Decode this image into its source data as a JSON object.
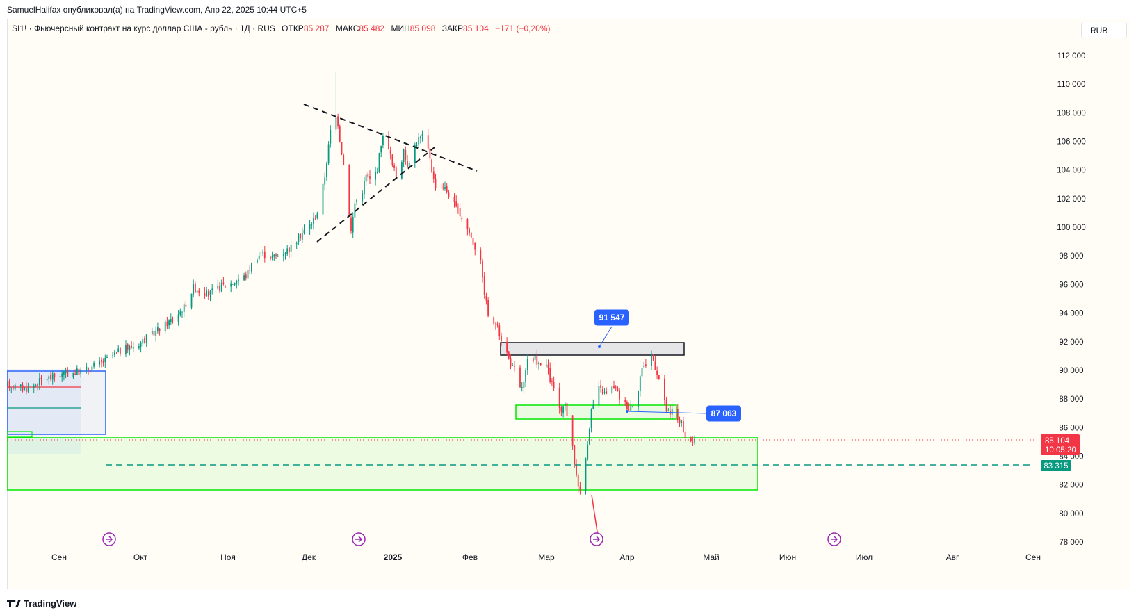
{
  "topbar": {
    "text": "SamuelHalifax опубликовал(а) на TradingView.com, Апр 22, 2025 10:44 UTC+5"
  },
  "legend": {
    "symbol": "SI1! · Фьючерсный контракт на курс доллар США - рубль · 1Д · RUS",
    "open_label": "ОТКР",
    "open": "85 287",
    "high_label": "МАКС",
    "high": "85 482",
    "low_label": "МИН",
    "low": "85 098",
    "close_label": "ЗАКР",
    "close": "85 104",
    "change": "−171 (−0,20%)"
  },
  "currency_button": "RUB",
  "footer": {
    "brand": "TradingView"
  },
  "colors": {
    "up": "#089981",
    "down": "#f23645",
    "zone_green": "#00e600",
    "accent": "#2962ff"
  },
  "chart_data": {
    "type": "candlestick",
    "ylim": [
      77500,
      113000
    ],
    "y_ticks": [
      112000,
      110000,
      108000,
      106000,
      104000,
      102000,
      100000,
      98000,
      96000,
      94000,
      92000,
      90000,
      88000,
      86000,
      84000,
      82000,
      80000,
      78000
    ],
    "y_tick_labels": [
      "112 000",
      "110 000",
      "108 000",
      "106 000",
      "104 000",
      "102 000",
      "100 000",
      "98 000",
      "96 000",
      "94 000",
      "92 000",
      "90 000",
      "88 000",
      "86 000",
      "84 000",
      "82 000",
      "80 000",
      "78 000"
    ],
    "x_labels": [
      "Сен",
      "Окт",
      "Ноя",
      "Дек",
      "2025",
      "Фев",
      "Мар",
      "Апр",
      "Май",
      "Июн",
      "Июл",
      "Авг",
      "Сен"
    ],
    "x_label_bold": "2025",
    "last_price": "85 104",
    "countdown": "10:05:20",
    "level_price": "83 315",
    "callouts": [
      "91 547",
      "87 063"
    ],
    "price_path": [
      [
        0,
        89000
      ],
      [
        12,
        88700
      ],
      [
        20,
        89400
      ],
      [
        30,
        89700
      ],
      [
        42,
        90000
      ],
      [
        52,
        90600
      ],
      [
        60,
        91300
      ],
      [
        70,
        91800
      ],
      [
        80,
        92700
      ],
      [
        90,
        93700
      ],
      [
        95,
        94400
      ],
      [
        100,
        95800
      ],
      [
        108,
        95300
      ],
      [
        115,
        95900
      ],
      [
        120,
        96100
      ],
      [
        128,
        96600
      ],
      [
        132,
        97700
      ],
      [
        136,
        98200
      ],
      [
        142,
        97900
      ],
      [
        146,
        98100
      ],
      [
        152,
        98600
      ],
      [
        158,
        99600
      ],
      [
        163,
        100300
      ],
      [
        167,
        101300
      ],
      [
        170,
        103600
      ],
      [
        173,
        106700
      ],
      [
        175,
        108000
      ],
      [
        177,
        107300
      ],
      [
        178,
        106200
      ],
      [
        181,
        103500
      ],
      [
        184,
        99700
      ],
      [
        186,
        101700
      ],
      [
        190,
        102600
      ],
      [
        192,
        103600
      ],
      [
        195,
        103200
      ],
      [
        198,
        104100
      ],
      [
        200,
        105900
      ],
      [
        202,
        106600
      ],
      [
        204,
        105700
      ],
      [
        206,
        104300
      ],
      [
        208,
        103600
      ],
      [
        210,
        104300
      ],
      [
        212,
        105200
      ],
      [
        214,
        104400
      ],
      [
        216,
        105100
      ],
      [
        218,
        105700
      ],
      [
        220,
        106200
      ],
      [
        222,
        106300
      ],
      [
        224,
        105900
      ],
      [
        226,
        104900
      ],
      [
        228,
        103300
      ],
      [
        230,
        102600
      ],
      [
        233,
        102900
      ],
      [
        236,
        102300
      ],
      [
        240,
        101300
      ],
      [
        244,
        100500
      ],
      [
        248,
        99300
      ],
      [
        250,
        98600
      ],
      [
        252,
        99500
      ],
      [
        254,
        96300
      ],
      [
        257,
        93900
      ],
      [
        259,
        92900
      ],
      [
        261,
        93300
      ],
      [
        263,
        92600
      ],
      [
        266,
        91600
      ],
      [
        268,
        90800
      ],
      [
        270,
        90200
      ],
      [
        272,
        89900
      ],
      [
        274,
        88700
      ],
      [
        276,
        89100
      ],
      [
        278,
        90600
      ],
      [
        280,
        90300
      ],
      [
        282,
        90800
      ],
      [
        284,
        90500
      ],
      [
        286,
        89900
      ],
      [
        288,
        90400
      ],
      [
        290,
        89400
      ],
      [
        292,
        88700
      ],
      [
        294,
        87800
      ],
      [
        296,
        86900
      ],
      [
        298,
        87600
      ],
      [
        300,
        86300
      ],
      [
        302,
        84500
      ],
      [
        304,
        82700
      ],
      [
        306,
        81500
      ],
      [
        308,
        82800
      ],
      [
        312,
        87200
      ],
      [
        316,
        88700
      ],
      [
        320,
        88300
      ],
      [
        324,
        88900
      ],
      [
        328,
        87900
      ],
      [
        332,
        87400
      ],
      [
        336,
        88000
      ],
      [
        338,
        89600
      ],
      [
        340,
        90500
      ],
      [
        342,
        90200
      ],
      [
        344,
        91100
      ],
      [
        346,
        90300
      ],
      [
        348,
        89400
      ],
      [
        350,
        88300
      ],
      [
        352,
        87200
      ],
      [
        354,
        86800
      ],
      [
        356,
        87600
      ],
      [
        358,
        86600
      ],
      [
        360,
        86300
      ],
      [
        362,
        85000
      ],
      [
        364,
        84900
      ],
      [
        366,
        85100
      ]
    ]
  }
}
